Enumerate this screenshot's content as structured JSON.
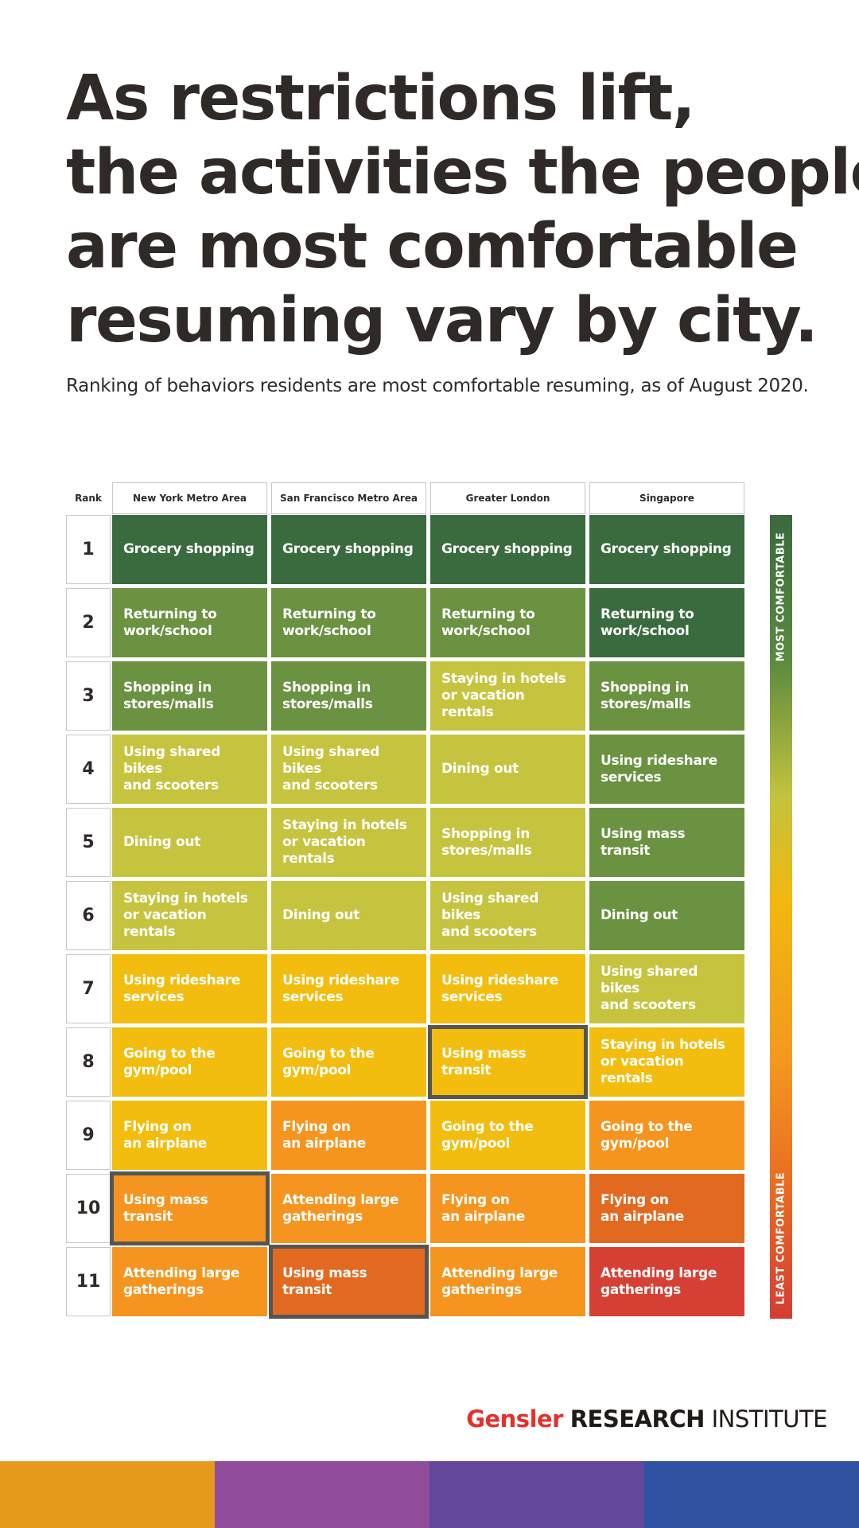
{
  "title_lines": [
    "As restrictions lift,",
    "the activities the people",
    "are most comfortable",
    "resuming vary by city."
  ],
  "subtitle": "Ranking of behaviors residents are most comfortable resuming, as of August 2020.",
  "colors": {
    "dark_green": "#3a6b3e",
    "green": "#6a9240",
    "lime": "#c6c43f",
    "yellow": "#f2bd0e",
    "orange": "#f5951f",
    "dark_orange": "#e26a20",
    "red": "#d64034",
    "highlight_border": "#555555"
  },
  "chart_data": {
    "type": "table",
    "rank_label": "Rank",
    "ranks": [
      1,
      2,
      3,
      4,
      5,
      6,
      7,
      8,
      9,
      10,
      11
    ],
    "columns": [
      {
        "name": "New York Metro Area",
        "cells": [
          {
            "label": "Grocery shopping",
            "level": "dark_green"
          },
          {
            "label": "Returning to\nwork/school",
            "level": "green"
          },
          {
            "label": "Shopping in\nstores/malls",
            "level": "green"
          },
          {
            "label": "Using shared bikes\nand scooters",
            "level": "lime"
          },
          {
            "label": "Dining out",
            "level": "lime"
          },
          {
            "label": "Staying in hotels\nor vacation rentals",
            "level": "lime"
          },
          {
            "label": "Using rideshare\nservices",
            "level": "yellow"
          },
          {
            "label": "Going to the\ngym/pool",
            "level": "yellow"
          },
          {
            "label": "Flying on\nan airplane",
            "level": "yellow"
          },
          {
            "label": "Using mass transit",
            "level": "orange",
            "highlight": true
          },
          {
            "label": "Attending large\ngatherings",
            "level": "orange"
          }
        ]
      },
      {
        "name": "San Francisco Metro Area",
        "cells": [
          {
            "label": "Grocery shopping",
            "level": "dark_green"
          },
          {
            "label": "Returning to\nwork/school",
            "level": "green"
          },
          {
            "label": "Shopping in\nstores/malls",
            "level": "green"
          },
          {
            "label": "Using shared bikes\nand scooters",
            "level": "lime"
          },
          {
            "label": "Staying in hotels\nor vacation rentals",
            "level": "lime"
          },
          {
            "label": "Dining out",
            "level": "lime"
          },
          {
            "label": "Using rideshare\nservices",
            "level": "yellow"
          },
          {
            "label": "Going to the\ngym/pool",
            "level": "yellow"
          },
          {
            "label": "Flying on\nan airplane",
            "level": "orange"
          },
          {
            "label": "Attending large\ngatherings",
            "level": "orange"
          },
          {
            "label": "Using mass transit",
            "level": "dark_orange",
            "highlight": true
          }
        ]
      },
      {
        "name": "Greater London",
        "cells": [
          {
            "label": "Grocery shopping",
            "level": "dark_green"
          },
          {
            "label": "Returning to\nwork/school",
            "level": "green"
          },
          {
            "label": "Staying in hotels\nor vacation rentals",
            "level": "lime"
          },
          {
            "label": "Dining out",
            "level": "lime"
          },
          {
            "label": "Shopping in\nstores/malls",
            "level": "lime"
          },
          {
            "label": "Using shared bikes\nand scooters",
            "level": "lime"
          },
          {
            "label": "Using rideshare\nservices",
            "level": "yellow"
          },
          {
            "label": "Using mass transit",
            "level": "yellow",
            "highlight": true
          },
          {
            "label": "Going to the\ngym/pool",
            "level": "yellow"
          },
          {
            "label": "Flying on\nan airplane",
            "level": "orange"
          },
          {
            "label": "Attending large\ngatherings",
            "level": "orange"
          }
        ]
      },
      {
        "name": "Singapore",
        "cells": [
          {
            "label": "Grocery shopping",
            "level": "dark_green"
          },
          {
            "label": "Returning to\nwork/school",
            "level": "dark_green"
          },
          {
            "label": "Shopping in\nstores/malls",
            "level": "green"
          },
          {
            "label": "Using rideshare\nservices",
            "level": "green"
          },
          {
            "label": "Using mass transit",
            "level": "green"
          },
          {
            "label": "Dining out",
            "level": "green"
          },
          {
            "label": "Using shared bikes\nand scooters",
            "level": "lime"
          },
          {
            "label": "Staying in hotels\nor vacation rentals",
            "level": "yellow"
          },
          {
            "label": "Going to the\ngym/pool",
            "level": "orange"
          },
          {
            "label": "Flying on\nan airplane",
            "level": "dark_orange"
          },
          {
            "label": "Attending large\ngatherings",
            "level": "red"
          }
        ]
      }
    ],
    "scale_top_label": "MOST COMFORTABLE",
    "scale_bottom_label": "LEAST COMFORTABLE"
  },
  "footer": {
    "brand": "Gensler",
    "research": "RESEARCH",
    "institute": "INSTITUTE"
  },
  "stripes": [
    "#e79b1e",
    "#924c9c",
    "#62479a",
    "#2f53a2"
  ]
}
